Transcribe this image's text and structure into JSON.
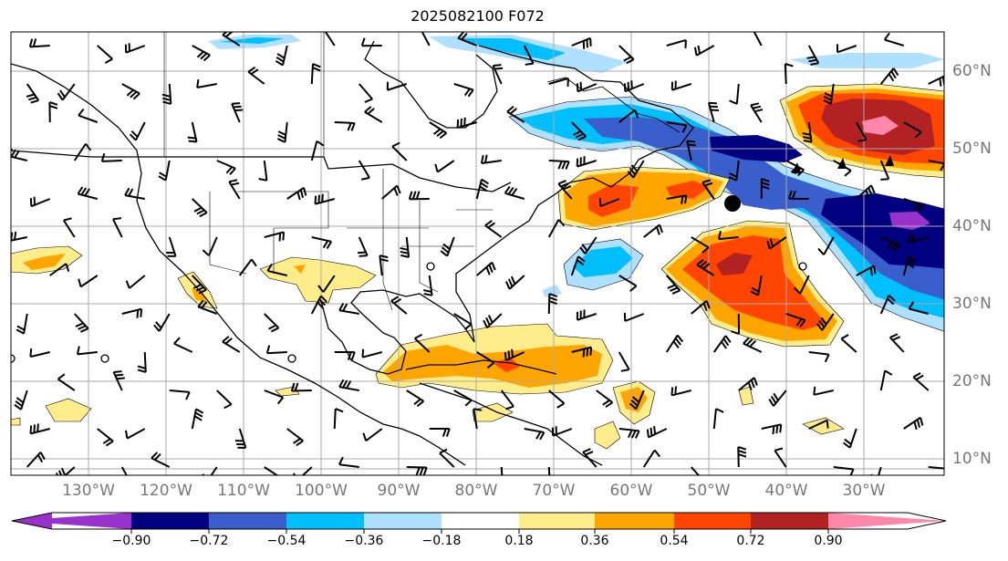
{
  "title": "2025082100 F072",
  "longitude_labels": [
    "130°W",
    "120°W",
    "110°W",
    "100°W",
    "90°W",
    "80°W",
    "70°W",
    "60°W",
    "50°W",
    "40°W",
    "30°W"
  ],
  "latitude_labels": [
    "60°N",
    "50°N",
    "40°N",
    "30°N",
    "20°N",
    "10°N"
  ],
  "colorbar": {
    "tick_labels": [
      "−0.90",
      "−0.72",
      "−0.54",
      "−0.36",
      "−0.18",
      "0.18",
      "0.36",
      "0.54",
      "0.72",
      "0.90"
    ],
    "colors": [
      "#9932cc",
      "#000080",
      "#3a5fcd",
      "#00bfff",
      "#b0e0ff",
      "#ffffff",
      "#ffec8b",
      "#ffa500",
      "#ff4500",
      "#b22222",
      "#ff88aa"
    ]
  }
}
